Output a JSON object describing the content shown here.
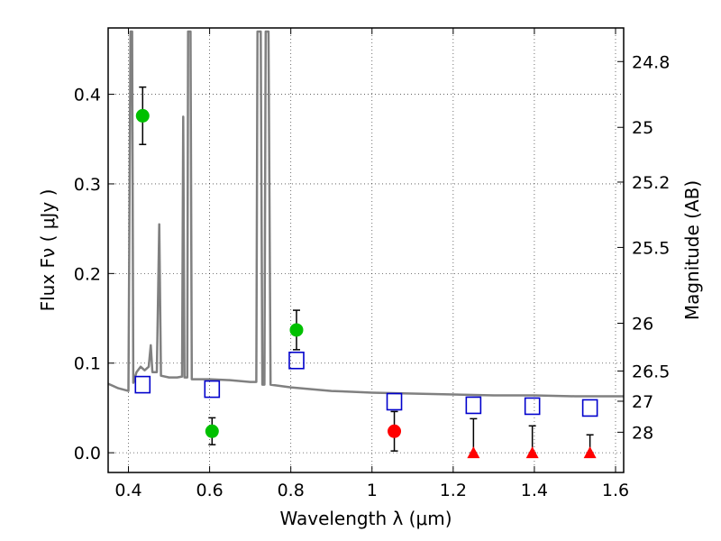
{
  "chart_data": {
    "type": "scatter",
    "xlabel": "Wavelength  λ (μm)",
    "ylabel": "Flux  Fν  ( μJy )",
    "ylabel_right": "Magnitude (AB)",
    "xlim": [
      0.35,
      1.62
    ],
    "ylim": [
      -0.022,
      0.474
    ],
    "grid": true,
    "x_ticks": [
      0.4,
      0.6,
      0.8,
      1.0,
      1.2,
      1.4,
      1.6
    ],
    "x_tick_labels": [
      "0.4",
      "0.6",
      "0.8",
      "1",
      "1.2",
      "1.4",
      "1.6"
    ],
    "y_ticks": [
      0.0,
      0.1,
      0.2,
      0.3,
      0.4
    ],
    "y_tick_labels": [
      "0.0",
      "0.1",
      "0.2",
      "0.3",
      "0.4"
    ],
    "right_ticks": [
      {
        "label": "24.8",
        "flux": 0.4365
      },
      {
        "label": "25",
        "flux": 0.3631
      },
      {
        "label": "25.2",
        "flux": 0.302
      },
      {
        "label": "25.5",
        "flux": 0.2291
      },
      {
        "label": "26",
        "flux": 0.1445
      },
      {
        "label": "26.5",
        "flux": 0.0912
      },
      {
        "label": "27",
        "flux": 0.0575
      },
      {
        "label": "28",
        "flux": 0.0229
      }
    ],
    "series": [
      {
        "marker": "circle",
        "color": "#00c000",
        "points": [
          {
            "x": 0.435,
            "y": 0.376,
            "yerr": 0.032
          },
          {
            "x": 0.606,
            "y": 0.024,
            "yerr": 0.015
          },
          {
            "x": 0.814,
            "y": 0.137,
            "yerr": 0.022
          }
        ]
      },
      {
        "marker": "circle",
        "color": "#ff0000",
        "points": [
          {
            "x": 1.055,
            "y": 0.024,
            "yerr": 0.022
          }
        ]
      },
      {
        "marker": "triangle",
        "color": "#ff0000",
        "points": [
          {
            "x": 1.25,
            "y": 0.0,
            "yerr_up": 0.038
          },
          {
            "x": 1.395,
            "y": 0.0,
            "yerr_up": 0.03
          },
          {
            "x": 1.537,
            "y": 0.0,
            "yerr_up": 0.02
          }
        ]
      },
      {
        "marker": "square-open",
        "color": "#0000cc",
        "points": [
          {
            "x": 0.435,
            "y": 0.076
          },
          {
            "x": 0.606,
            "y": 0.071
          },
          {
            "x": 0.814,
            "y": 0.103
          },
          {
            "x": 1.055,
            "y": 0.057
          },
          {
            "x": 1.25,
            "y": 0.053
          },
          {
            "x": 1.395,
            "y": 0.052
          },
          {
            "x": 1.537,
            "y": 0.05
          }
        ]
      },
      {
        "type": "line",
        "color": "#808080",
        "points": [
          [
            0.35,
            0.077
          ],
          [
            0.375,
            0.072
          ],
          [
            0.4,
            0.069
          ],
          [
            0.405,
            0.47
          ],
          [
            0.409,
            0.47
          ],
          [
            0.412,
            0.078
          ],
          [
            0.42,
            0.09
          ],
          [
            0.43,
            0.096
          ],
          [
            0.44,
            0.092
          ],
          [
            0.45,
            0.096
          ],
          [
            0.455,
            0.12
          ],
          [
            0.459,
            0.09
          ],
          [
            0.47,
            0.09
          ],
          [
            0.476,
            0.255
          ],
          [
            0.48,
            0.086
          ],
          [
            0.5,
            0.084
          ],
          [
            0.52,
            0.084
          ],
          [
            0.532,
            0.085
          ],
          [
            0.535,
            0.375
          ],
          [
            0.538,
            0.084
          ],
          [
            0.545,
            0.084
          ],
          [
            0.547,
            0.47
          ],
          [
            0.553,
            0.47
          ],
          [
            0.556,
            0.082
          ],
          [
            0.6,
            0.082
          ],
          [
            0.65,
            0.081
          ],
          [
            0.7,
            0.079
          ],
          [
            0.715,
            0.079
          ],
          [
            0.718,
            0.47
          ],
          [
            0.726,
            0.47
          ],
          [
            0.73,
            0.076
          ],
          [
            0.735,
            0.076
          ],
          [
            0.738,
            0.47
          ],
          [
            0.745,
            0.47
          ],
          [
            0.75,
            0.076
          ],
          [
            0.8,
            0.073
          ],
          [
            0.85,
            0.071
          ],
          [
            0.9,
            0.069
          ],
          [
            0.95,
            0.068
          ],
          [
            1.0,
            0.067
          ],
          [
            1.1,
            0.066
          ],
          [
            1.2,
            0.065
          ],
          [
            1.3,
            0.064
          ],
          [
            1.4,
            0.064
          ],
          [
            1.5,
            0.063
          ],
          [
            1.62,
            0.063
          ]
        ]
      }
    ]
  }
}
